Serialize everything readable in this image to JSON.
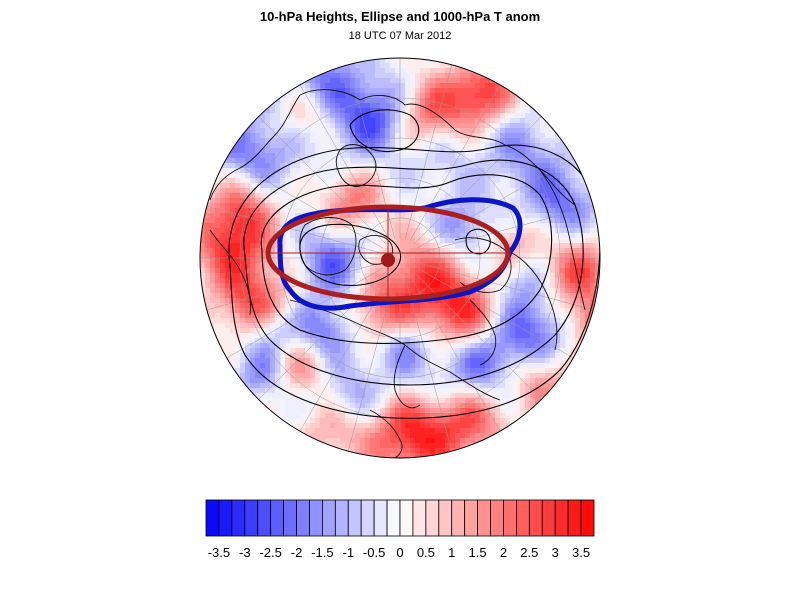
{
  "title": "10-hPa Heights, Ellipse and 1000-hPa T anom",
  "subtitle": "18 UTC 07 Mar 2012",
  "colors": {
    "cold": "#0000ff",
    "warm": "#ff0000",
    "height_contours": "#000000",
    "vortex_edge": "#0a14c8",
    "ellipse": "#aa2020",
    "center_marker": "#a01818"
  },
  "colorbar": {
    "tick_labels": [
      "-3.5",
      "-3",
      "-2.5",
      "-2",
      "-1.5",
      "-1",
      "-0.5",
      "0",
      "0.5",
      "1",
      "1.5",
      "2",
      "2.5",
      "3",
      "3.5"
    ],
    "min": -3.75,
    "max": 3.75,
    "step": 0.25
  },
  "map": {
    "projection": "polar stereographic, North Pole",
    "layers": [
      "1000-hPa temperature anomaly (filled)",
      "10-hPa height contours",
      "vortex edge contour",
      "fitted ellipse",
      "ellipse center",
      "coastlines",
      "lat/lon grid"
    ]
  }
}
